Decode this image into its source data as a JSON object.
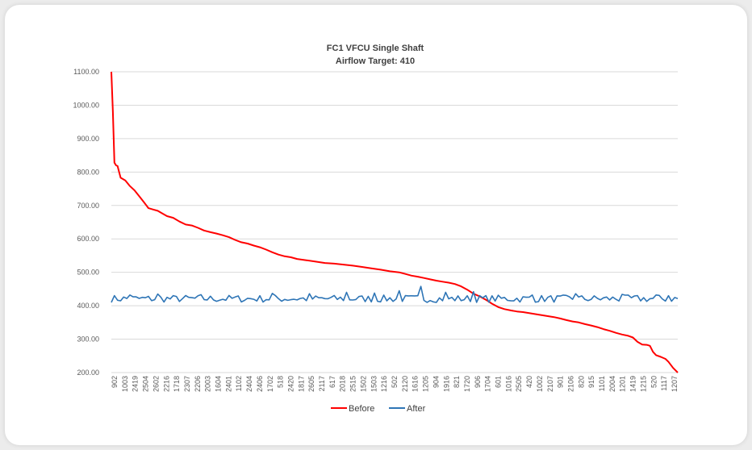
{
  "chart_data": {
    "type": "line",
    "title": "FC1 VFCU Single Shaft",
    "subtitle": "Airflow Target: 410",
    "xlabel": "",
    "ylabel": "",
    "ylim": [
      200,
      1100
    ],
    "yticks": [
      "1100.00",
      "1000.00",
      "900.00",
      "800.00",
      "700.00",
      "600.00",
      "500.00",
      "400.00",
      "300.00",
      "200.00"
    ],
    "grid": true,
    "legend_position": "bottom",
    "point_count": 210,
    "x_tick_labels": [
      "902",
      "1003",
      "2419",
      "2504",
      "2602",
      "2216",
      "1718",
      "2307",
      "2206",
      "2003",
      "1604",
      "2401",
      "1102",
      "2404",
      "2406",
      "1702",
      "518",
      "2420",
      "1817",
      "2605",
      "2117",
      "617",
      "2018",
      "2515",
      "1502",
      "1503",
      "1216",
      "502",
      "2120",
      "1616",
      "1205",
      "904",
      "1916",
      "821",
      "1720",
      "906",
      "1704",
      "601",
      "1016",
      "2505",
      "420",
      "1002",
      "2107",
      "901",
      "2106",
      "820",
      "915",
      "1101",
      "2004",
      "1201",
      "1419",
      "1215",
      "520",
      "1117",
      "1207"
    ],
    "series": [
      {
        "name": "Before",
        "color": "#ff0000",
        "keypoints": [
          [
            0,
            1100
          ],
          [
            1,
            980
          ],
          [
            2,
            828
          ],
          [
            3,
            820
          ],
          [
            4,
            818
          ],
          [
            5,
            800
          ],
          [
            6,
            783
          ],
          [
            9,
            775
          ],
          [
            12,
            758
          ],
          [
            15,
            745
          ],
          [
            18,
            728
          ],
          [
            21,
            710
          ],
          [
            24,
            692
          ],
          [
            27,
            688
          ],
          [
            30,
            684
          ],
          [
            33,
            676
          ],
          [
            36,
            668
          ],
          [
            40,
            663
          ],
          [
            44,
            652
          ],
          [
            48,
            643
          ],
          [
            52,
            640
          ],
          [
            56,
            633
          ],
          [
            60,
            625
          ],
          [
            64,
            620
          ],
          [
            68,
            616
          ],
          [
            72,
            611
          ],
          [
            76,
            605
          ],
          [
            80,
            597
          ],
          [
            84,
            590
          ],
          [
            88,
            586
          ],
          [
            92,
            580
          ],
          [
            96,
            575
          ],
          [
            100,
            568
          ],
          [
            104,
            560
          ],
          [
            108,
            553
          ],
          [
            112,
            548
          ],
          [
            116,
            545
          ],
          [
            120,
            540
          ],
          [
            126,
            536
          ],
          [
            132,
            532
          ],
          [
            138,
            528
          ],
          [
            144,
            526
          ],
          [
            150,
            523
          ],
          [
            156,
            520
          ],
          [
            162,
            516
          ],
          [
            168,
            512
          ],
          [
            174,
            508
          ],
          [
            180,
            503
          ],
          [
            186,
            500
          ],
          [
            190,
            495
          ],
          [
            194,
            490
          ],
          [
            198,
            487
          ],
          [
            202,
            483
          ],
          [
            206,
            479
          ],
          [
            210,
            475
          ],
          [
            214,
            472
          ],
          [
            218,
            469
          ],
          [
            222,
            465
          ],
          [
            226,
            458
          ],
          [
            230,
            448
          ],
          [
            234,
            436
          ],
          [
            238,
            428
          ],
          [
            242,
            418
          ],
          [
            246,
            406
          ],
          [
            250,
            396
          ],
          [
            254,
            390
          ],
          [
            258,
            386
          ],
          [
            262,
            383
          ],
          [
            266,
            381
          ],
          [
            270,
            378
          ],
          [
            274,
            375
          ],
          [
            278,
            372
          ],
          [
            282,
            369
          ],
          [
            286,
            366
          ],
          [
            290,
            362
          ],
          [
            294,
            357
          ],
          [
            298,
            353
          ],
          [
            302,
            350
          ],
          [
            306,
            345
          ],
          [
            310,
            341
          ],
          [
            314,
            336
          ],
          [
            318,
            330
          ],
          [
            322,
            325
          ],
          [
            326,
            319
          ],
          [
            330,
            314
          ],
          [
            334,
            310
          ],
          [
            337,
            305
          ],
          [
            340,
            292
          ],
          [
            343,
            284
          ],
          [
            346,
            283
          ],
          [
            348,
            280
          ],
          [
            350,
            262
          ],
          [
            352,
            252
          ],
          [
            355,
            247
          ],
          [
            358,
            241
          ],
          [
            360,
            232
          ],
          [
            363,
            214
          ],
          [
            366,
            200
          ]
        ]
      },
      {
        "name": "After",
        "color": "#2e75b6",
        "base": 421
      }
    ]
  }
}
